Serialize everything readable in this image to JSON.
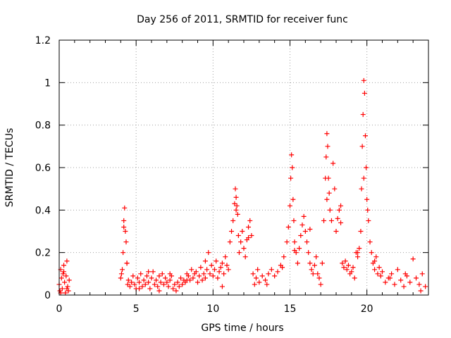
{
  "chart_data": {
    "type": "scatter",
    "title": "Day 256 of 2011, SRMTID for receiver func",
    "xlabel": "GPS time / hours",
    "ylabel": "SRMTID / TECUs",
    "xlim": [
      0,
      24
    ],
    "ylim": [
      0,
      1.2
    ],
    "grid": true,
    "marker": "+",
    "marker_color": "#ff0000",
    "x_ticks": [
      0,
      5,
      10,
      15,
      20
    ],
    "x_tick_labels": [
      "0",
      "5",
      "10",
      "15",
      "20"
    ],
    "y_ticks": [
      0,
      0.2,
      0.4,
      0.6,
      0.8,
      1,
      1.2
    ],
    "y_tick_labels": [
      "0",
      "0.2",
      "0.4",
      "0.6",
      "0.8",
      "1",
      "1.2"
    ],
    "series": [
      {
        "name": "SRMTID",
        "x": [
          0.0,
          0.05,
          0.1,
          0.15,
          0.2,
          0.25,
          0.3,
          0.35,
          0.4,
          0.45,
          0.5,
          0.55,
          0.6,
          0.65,
          4.0,
          4.05,
          4.1,
          4.15,
          4.2,
          4.25,
          4.3,
          4.35,
          4.4,
          4.45,
          4.5,
          4.6,
          4.7,
          4.8,
          4.9,
          5.0,
          5.1,
          5.2,
          5.3,
          5.4,
          5.5,
          5.6,
          5.7,
          5.8,
          5.9,
          6.0,
          6.1,
          6.2,
          6.3,
          6.4,
          6.5,
          6.6,
          6.7,
          6.8,
          6.9,
          7.0,
          7.1,
          7.2,
          7.3,
          7.4,
          7.5,
          7.6,
          7.7,
          7.8,
          7.9,
          8.0,
          8.1,
          8.2,
          8.3,
          8.4,
          8.5,
          8.6,
          8.7,
          8.8,
          8.9,
          9.0,
          9.1,
          9.2,
          9.3,
          9.4,
          9.5,
          9.6,
          9.7,
          9.8,
          9.9,
          10.0,
          10.1,
          10.2,
          10.3,
          10.4,
          10.5,
          10.6,
          10.7,
          10.8,
          10.9,
          11.0,
          11.1,
          11.2,
          11.3,
          11.4,
          11.45,
          11.5,
          11.55,
          11.6,
          11.65,
          11.7,
          11.8,
          11.9,
          12.0,
          12.1,
          12.2,
          12.3,
          12.4,
          12.5,
          12.6,
          12.7,
          12.8,
          12.9,
          13.0,
          13.2,
          13.4,
          13.6,
          13.8,
          14.0,
          14.2,
          14.4,
          14.6,
          14.8,
          14.9,
          15.0,
          15.05,
          15.1,
          15.15,
          15.2,
          15.25,
          15.3,
          15.4,
          15.5,
          15.6,
          15.7,
          15.8,
          15.9,
          16.0,
          16.1,
          16.2,
          16.3,
          16.4,
          16.5,
          16.6,
          16.7,
          16.8,
          16.9,
          17.0,
          17.1,
          17.2,
          17.3,
          17.35,
          17.4,
          17.45,
          17.5,
          17.55,
          17.6,
          17.7,
          17.8,
          17.9,
          18.0,
          18.1,
          18.2,
          18.3,
          18.4,
          18.5,
          18.6,
          18.7,
          18.8,
          18.9,
          19.0,
          19.1,
          19.2,
          19.3,
          19.4,
          19.5,
          19.6,
          19.65,
          19.7,
          19.75,
          19.8,
          19.85,
          19.9,
          19.95,
          20.0,
          20.05,
          20.1,
          20.2,
          20.3,
          20.4,
          20.5,
          20.6,
          20.7,
          20.8,
          20.9,
          21.0,
          21.2,
          21.4,
          21.6,
          21.8,
          22.0,
          22.2,
          22.4,
          22.6,
          22.8,
          23.0,
          23.2,
          23.4,
          23.6,
          23.8,
          0.1,
          0.3,
          0.5,
          4.2,
          4.4,
          5.2,
          5.8,
          6.5,
          7.2,
          8.3,
          9.5,
          10.6,
          11.5,
          12.3,
          13.5,
          14.5,
          15.3,
          16.3,
          17.4,
          18.3,
          19.4,
          19.8,
          20.5,
          21.5,
          22.5,
          23.5
        ],
        "y": [
          0.05,
          0.02,
          0.12,
          0.08,
          0.03,
          0.1,
          0.14,
          0.06,
          0.01,
          0.09,
          0.16,
          0.04,
          0.02,
          0.07,
          0.08,
          0.1,
          0.12,
          0.2,
          0.35,
          0.41,
          0.3,
          0.25,
          0.15,
          0.05,
          0.07,
          0.04,
          0.06,
          0.09,
          0.05,
          0.03,
          0.08,
          0.06,
          0.1,
          0.04,
          0.07,
          0.05,
          0.09,
          0.06,
          0.03,
          0.08,
          0.11,
          0.05,
          0.07,
          0.04,
          0.09,
          0.06,
          0.1,
          0.05,
          0.08,
          0.06,
          0.04,
          0.07,
          0.09,
          0.03,
          0.05,
          0.02,
          0.06,
          0.04,
          0.08,
          0.05,
          0.07,
          0.06,
          0.1,
          0.09,
          0.07,
          0.12,
          0.08,
          0.1,
          0.11,
          0.06,
          0.09,
          0.13,
          0.07,
          0.1,
          0.08,
          0.12,
          0.2,
          0.1,
          0.14,
          0.09,
          0.12,
          0.16,
          0.08,
          0.11,
          0.13,
          0.15,
          0.1,
          0.18,
          0.14,
          0.12,
          0.25,
          0.3,
          0.35,
          0.43,
          0.5,
          0.46,
          0.42,
          0.38,
          0.28,
          0.2,
          0.25,
          0.3,
          0.22,
          0.18,
          0.26,
          0.32,
          0.35,
          0.28,
          0.1,
          0.05,
          0.08,
          0.12,
          0.06,
          0.09,
          0.07,
          0.1,
          0.12,
          0.09,
          0.11,
          0.14,
          0.18,
          0.25,
          0.32,
          0.42,
          0.55,
          0.66,
          0.6,
          0.45,
          0.35,
          0.25,
          0.2,
          0.15,
          0.22,
          0.28,
          0.33,
          0.37,
          0.3,
          0.25,
          0.2,
          0.15,
          0.12,
          0.1,
          0.14,
          0.18,
          0.1,
          0.08,
          0.05,
          0.15,
          0.35,
          0.55,
          0.65,
          0.76,
          0.7,
          0.55,
          0.48,
          0.4,
          0.35,
          0.62,
          0.5,
          0.3,
          0.36,
          0.4,
          0.42,
          0.15,
          0.13,
          0.16,
          0.12,
          0.14,
          0.1,
          0.11,
          0.13,
          0.08,
          0.2,
          0.18,
          0.22,
          0.3,
          0.5,
          0.7,
          0.85,
          1.01,
          0.95,
          0.75,
          0.6,
          0.45,
          0.4,
          0.35,
          0.25,
          0.2,
          0.15,
          0.12,
          0.18,
          0.1,
          0.13,
          0.09,
          0.11,
          0.06,
          0.08,
          0.1,
          0.05,
          0.12,
          0.07,
          0.04,
          0.09,
          0.06,
          0.17,
          0.08,
          0.05,
          0.1,
          0.04,
          0.01,
          0.11,
          0.03,
          0.32,
          0.15,
          0.03,
          0.11,
          0.02,
          0.1,
          0.07,
          0.16,
          0.04,
          0.4,
          0.27,
          0.05,
          0.13,
          0.21,
          0.31,
          0.45,
          0.34,
          0.2,
          0.55,
          0.16,
          0.08,
          0.1,
          0.02
        ]
      }
    ]
  }
}
